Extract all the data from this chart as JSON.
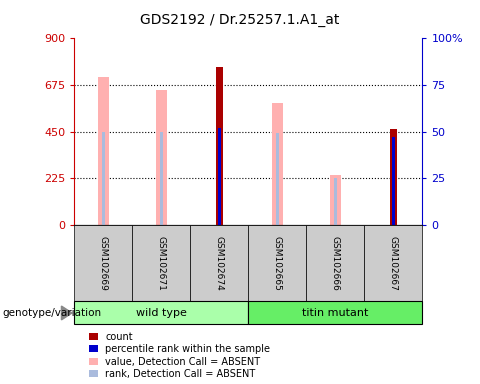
{
  "title": "GDS2192 / Dr.25257.1.A1_at",
  "samples": [
    "GSM102669",
    "GSM102671",
    "GSM102674",
    "GSM102665",
    "GSM102666",
    "GSM102667"
  ],
  "groups": [
    "wild type",
    "wild type",
    "wild type",
    "titin mutant",
    "titin mutant",
    "titin mutant"
  ],
  "group_labels": [
    "wild type",
    "titin mutant"
  ],
  "group_colors": [
    "#AAFFAA",
    "#66EE66"
  ],
  "ylim_left": [
    0,
    900
  ],
  "ylim_right": [
    0,
    100
  ],
  "yticks_left": [
    0,
    225,
    450,
    675,
    900
  ],
  "ytick_labels_left": [
    "0",
    "225",
    "450",
    "675",
    "900"
  ],
  "yticks_right": [
    0,
    25,
    50,
    75,
    100
  ],
  "ytick_labels_right": [
    "0",
    "25",
    "50",
    "75",
    "100%"
  ],
  "count_values": [
    null,
    null,
    760,
    null,
    null,
    460
  ],
  "rank_values": [
    null,
    null,
    52,
    null,
    null,
    47
  ],
  "absent_value_values": [
    715,
    650,
    null,
    590,
    240,
    null
  ],
  "absent_rank_values": [
    50,
    50,
    null,
    49,
    25,
    null
  ],
  "count_color": "#AA0000",
  "rank_color": "#0000CC",
  "absent_value_color": "#FFB0B0",
  "absent_rank_color": "#AABBDD",
  "legend_items": [
    {
      "label": "count",
      "color": "#AA0000"
    },
    {
      "label": "percentile rank within the sample",
      "color": "#0000CC"
    },
    {
      "label": "value, Detection Call = ABSENT",
      "color": "#FFB0B0"
    },
    {
      "label": "rank, Detection Call = ABSENT",
      "color": "#AABBDD"
    }
  ],
  "genotype_label": "genotype/variation",
  "background_color": "#FFFFFF",
  "plot_bg_color": "#FFFFFF",
  "left_axis_color": "#CC0000",
  "right_axis_color": "#0000CC",
  "sample_box_color": "#CCCCCC",
  "absent_bar_width": 0.18,
  "absent_rank_bar_width": 0.06,
  "count_bar_width": 0.12,
  "rank_bar_width": 0.05
}
